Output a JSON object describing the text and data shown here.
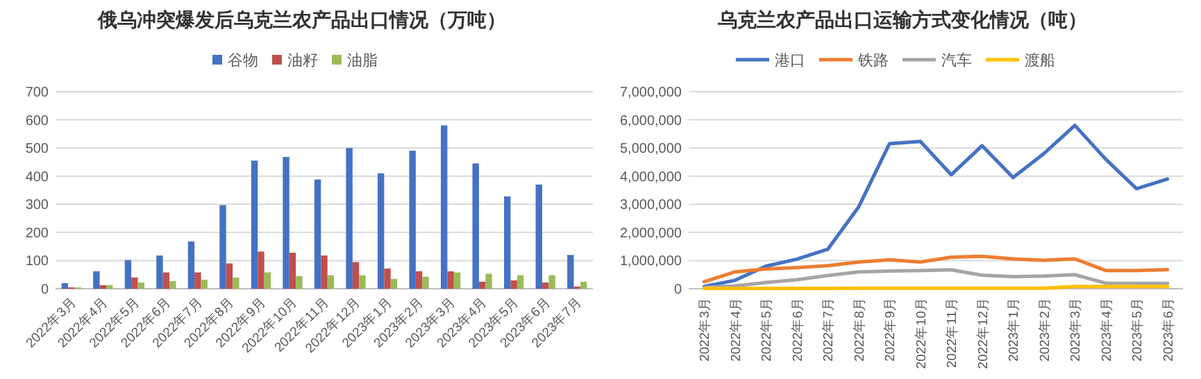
{
  "chart_data": [
    {
      "type": "bar",
      "title": "俄乌冲突爆发后乌克兰农产品出口情况（万吨）",
      "categories": [
        "2022年3月",
        "2022年4月",
        "2022年5月",
        "2022年6月",
        "2022年7月",
        "2022年8月",
        "2022年9月",
        "2022年10月",
        "2022年11月",
        "2022年12月",
        "2023年1月",
        "2023年2月",
        "2023年3月",
        "2023年4月",
        "2023年5月",
        "2023年6月",
        "2023年7月"
      ],
      "series": [
        {
          "name": "谷物",
          "color": "#4472c4",
          "values": [
            20,
            62,
            102,
            118,
            168,
            297,
            455,
            468,
            388,
            500,
            410,
            490,
            580,
            445,
            328,
            370,
            120
          ]
        },
        {
          "name": "油籽",
          "color": "#c0504d",
          "values": [
            5,
            13,
            40,
            58,
            58,
            90,
            132,
            128,
            118,
            95,
            72,
            62,
            62,
            25,
            30,
            22,
            8
          ]
        },
        {
          "name": "油脂",
          "color": "#9bbb59",
          "values": [
            5,
            13,
            22,
            27,
            32,
            40,
            58,
            45,
            48,
            48,
            35,
            43,
            58,
            53,
            48,
            48,
            25
          ]
        }
      ],
      "ylim": [
        0,
        700
      ],
      "yticks": [
        0,
        100,
        200,
        300,
        400,
        500,
        600,
        700
      ],
      "grid": "y",
      "legend": "top"
    },
    {
      "type": "line",
      "title": "乌克兰农产品出口运输方式变化情况（吨）",
      "categories": [
        "2022年3月",
        "2022年4月",
        "2022年5月",
        "2022年6月",
        "2022年7月",
        "2022年8月",
        "2022年9月",
        "2022年10月",
        "2022年11月",
        "2022年12月",
        "2023年1月",
        "2023年2月",
        "2023年3月",
        "2023年4月",
        "2023年5月",
        "2023年6月"
      ],
      "series": [
        {
          "name": "港口",
          "color": "#4472c4",
          "values": [
            80000,
            300000,
            800000,
            1050000,
            1400000,
            2900000,
            5150000,
            5230000,
            4050000,
            5080000,
            3950000,
            4800000,
            5800000,
            4600000,
            3550000,
            3900000
          ]
        },
        {
          "name": "铁路",
          "color": "#ed7d31",
          "values": [
            250000,
            600000,
            700000,
            750000,
            820000,
            950000,
            1030000,
            950000,
            1120000,
            1150000,
            1060000,
            1010000,
            1060000,
            650000,
            650000,
            680000
          ]
        },
        {
          "name": "汽车",
          "color": "#a5a5a5",
          "values": [
            50000,
            100000,
            220000,
            320000,
            470000,
            600000,
            630000,
            650000,
            670000,
            480000,
            430000,
            450000,
            500000,
            200000,
            190000,
            190000
          ]
        },
        {
          "name": "渡船",
          "color": "#ffc000",
          "values": [
            10000,
            10000,
            10000,
            10000,
            10000,
            20000,
            20000,
            20000,
            20000,
            20000,
            20000,
            20000,
            80000,
            80000,
            80000,
            80000
          ]
        }
      ],
      "ylim": [
        0,
        7000000
      ],
      "yticks": [
        {
          "value": 0,
          "label": "0"
        },
        {
          "value": 1000000,
          "label": "1,000,000"
        },
        {
          "value": 2000000,
          "label": "2,000,000"
        },
        {
          "value": 3000000,
          "label": "3,000,000"
        },
        {
          "value": 4000000,
          "label": "4,000,000"
        },
        {
          "value": 5000000,
          "label": "5,000,000"
        },
        {
          "value": 6000000,
          "label": "6,000,000"
        },
        {
          "value": 7000000,
          "label": "7,000,000"
        }
      ],
      "grid": "y",
      "legend": "top",
      "marker": "none",
      "line_style": "solid"
    }
  ]
}
